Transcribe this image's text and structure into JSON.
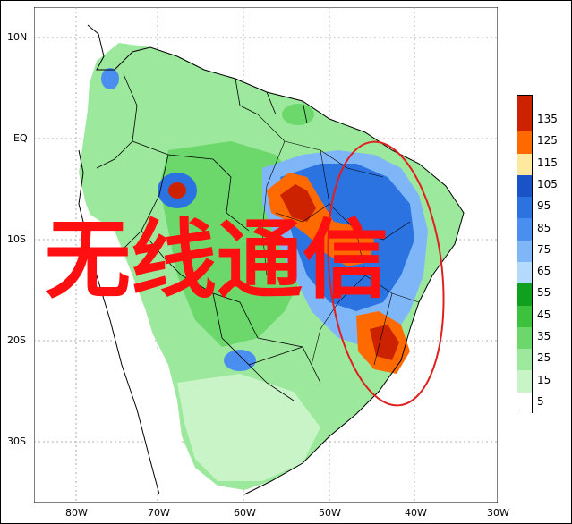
{
  "map": {
    "lat_labels": [
      "10N",
      "EQ",
      "10S",
      "20S",
      "30S"
    ],
    "lon_labels": [
      "80W",
      "70W",
      "60W",
      "50W",
      "40W",
      "30W"
    ]
  },
  "legend": {
    "bins": [
      {
        "label": "135",
        "color": "#cc2200"
      },
      {
        "label": "125",
        "color": "#ff6a00"
      },
      {
        "label": "115",
        "color": "#ffe8a0"
      },
      {
        "label": "105",
        "color": "#1a52c8"
      },
      {
        "label": "95",
        "color": "#2a73e0"
      },
      {
        "label": "85",
        "color": "#4a8ff0"
      },
      {
        "label": "75",
        "color": "#7fb6f8"
      },
      {
        "label": "65",
        "color": "#b4dafc"
      },
      {
        "label": "55",
        "color": "#10a020"
      },
      {
        "label": "45",
        "color": "#3cc23c"
      },
      {
        "label": "35",
        "color": "#6cd86c"
      },
      {
        "label": "25",
        "color": "#9ce89c"
      },
      {
        "label": "15",
        "color": "#c8f4c8"
      },
      {
        "label": "5",
        "color": "#ffffff"
      }
    ]
  },
  "watermark": {
    "text": "无线通信"
  },
  "colors": {
    "highlight_ellipse": "#e02020",
    "ocean": "#ffffff",
    "border": "#000000"
  }
}
